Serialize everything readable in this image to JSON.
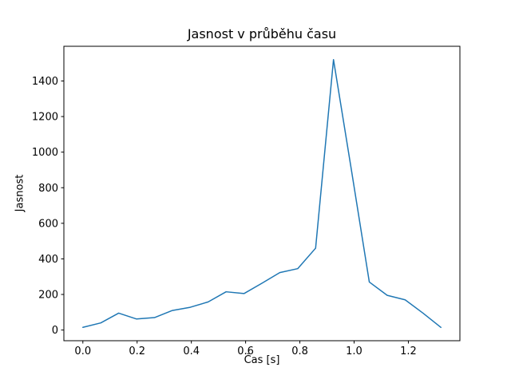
{
  "chart_data": {
    "type": "line",
    "title": "Jasnost v průběhu času",
    "xlabel": "Čas [s]",
    "ylabel": "Jasnost",
    "line_color": "#1f77b4",
    "grid": false,
    "legend": null,
    "xlim": [
      -0.07,
      1.39
    ],
    "ylim": [
      -60,
      1595
    ],
    "xticks": [
      0.0,
      0.2,
      0.4,
      0.6,
      0.8,
      1.0,
      1.2
    ],
    "xtick_labels": [
      "0.0",
      "0.2",
      "0.4",
      "0.6",
      "0.8",
      "1.0",
      "1.2"
    ],
    "yticks": [
      0,
      200,
      400,
      600,
      800,
      1000,
      1200,
      1400
    ],
    "ytick_labels": [
      "0",
      "200",
      "400",
      "600",
      "800",
      "1000",
      "1200",
      "1400"
    ],
    "x": [
      0.0,
      0.066,
      0.132,
      0.198,
      0.264,
      0.33,
      0.396,
      0.462,
      0.528,
      0.594,
      0.66,
      0.726,
      0.792,
      0.858,
      0.924,
      0.99,
      1.056,
      1.122,
      1.188,
      1.254,
      1.32
    ],
    "y": [
      15,
      40,
      95,
      62,
      70,
      110,
      128,
      158,
      215,
      205,
      263,
      323,
      345,
      460,
      1520,
      900,
      270,
      195,
      170,
      95,
      15
    ]
  }
}
